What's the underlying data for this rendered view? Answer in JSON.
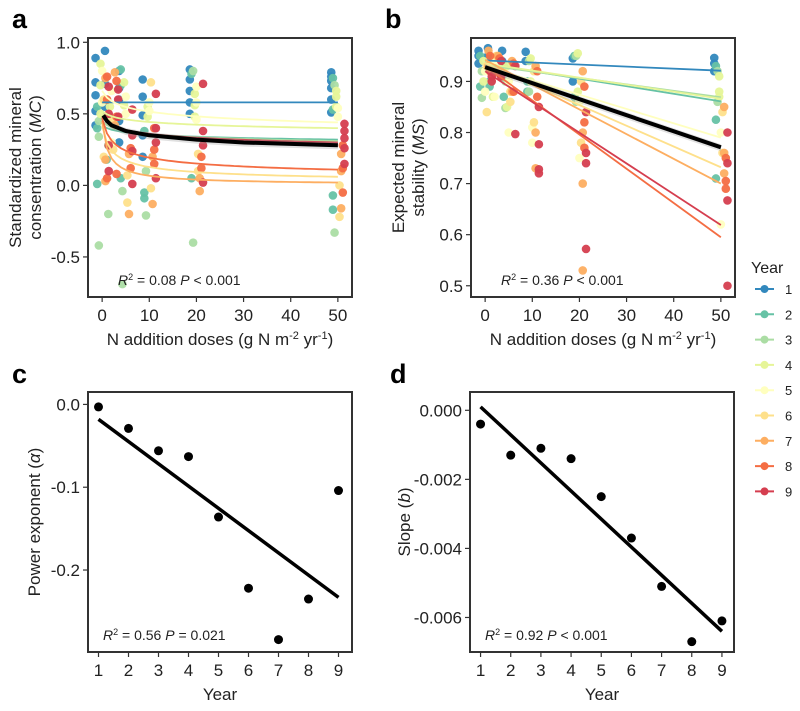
{
  "figure": {
    "panels": [
      "a",
      "b",
      "c",
      "d"
    ],
    "legend": {
      "title": "Year",
      "entries": [
        {
          "label": "1",
          "color": "#3288bd"
        },
        {
          "label": "2",
          "color": "#66c2a5"
        },
        {
          "label": "3",
          "color": "#abdda4"
        },
        {
          "label": "4",
          "color": "#e6f598"
        },
        {
          "label": "5",
          "color": "#ffffbf"
        },
        {
          "label": "6",
          "color": "#fee08b"
        },
        {
          "label": "7",
          "color": "#fdae61"
        },
        {
          "label": "8",
          "color": "#f46d43"
        },
        {
          "label": "9",
          "color": "#d53e4f"
        }
      ]
    }
  },
  "chart_data": [
    {
      "panel": "a",
      "type": "scatter",
      "title": "",
      "xlabel": "N addition doses (g N m⁻² yr⁻¹)",
      "ylabel_line1": "Standardized mineral",
      "ylabel_line2": "consentration (MC)",
      "xlim": [
        -3,
        53
      ],
      "ylim": [
        -0.78,
        1.03
      ],
      "xticks": [
        0,
        10,
        20,
        30,
        40,
        50
      ],
      "xtick_labels": [
        "0",
        "10",
        "20",
        "30",
        "40",
        "50"
      ],
      "yticks": [
        1.0,
        0.5,
        0.0,
        -0.5
      ],
      "ytick_labels": [
        "1.0",
        "0.5",
        "0.0",
        "-0.5"
      ],
      "annotation": "R² = 0.08 P < 0.001",
      "model": "power",
      "overall_fit": {
        "color": "#000000",
        "x": [
          0.25,
          1,
          2,
          5,
          10,
          20,
          30,
          40,
          50
        ],
        "y": [
          0.49,
          0.45,
          0.42,
          0.38,
          0.35,
          0.32,
          0.3,
          0.29,
          0.28
        ]
      },
      "series": [
        {
          "name": "1",
          "fit_y0": 0.58,
          "fit_y50": 0.58,
          "points": {
            "0": [
              0.89,
              0.72,
              0.63,
              0.52,
              0.42
            ],
            "2": [
              0.94,
              0.71,
              0.55
            ],
            "5": [
              0.8,
              0.68,
              0.6,
              0.45,
              0.3
            ],
            "10": [
              0.74,
              0.62,
              0.49,
              0.35,
              0.2
            ],
            "20": [
              0.81,
              0.74,
              0.66,
              0.58,
              0.5
            ],
            "50": [
              0.79,
              0.76,
              0.73,
              0.68,
              0.6,
              0.51
            ]
          }
        },
        {
          "name": "2",
          "fit_y0": 0.42,
          "fit_y50": 0.32,
          "points": {
            "0": [
              0.55,
              0.4,
              0.01
            ],
            "2": [
              0.6,
              0.18
            ],
            "5": [
              0.81,
              0.7,
              0.05
            ],
            "10": [
              0.38,
              -0.09,
              -0.05
            ],
            "20": [
              0.78,
              0.05
            ],
            "50": [
              0.75,
              0.53,
              -0.07,
              -0.17
            ]
          }
        },
        {
          "name": "3",
          "fit_y0": 0.45,
          "fit_y50": 0.31,
          "points": {
            "0": [
              0.45,
              0.34,
              -0.42
            ],
            "2": [
              0.28,
              -0.2
            ],
            "5": [
              -0.04,
              -0.69
            ],
            "10": [
              -0.21,
              0.1
            ],
            "20": [
              0.8,
              -0.4
            ],
            "50": [
              0.7,
              -0.33
            ]
          }
        },
        {
          "name": "4",
          "fit_y0": 0.52,
          "fit_y50": 0.4,
          "points": {
            "0": [
              0.85,
              0.7,
              0.5
            ],
            "2": [
              0.55,
              0.48
            ],
            "5": [
              0.72,
              0.56
            ],
            "10": [
              0.55,
              0.48
            ],
            "20": [
              0.64,
              0.56,
              0.48
            ],
            "50": [
              0.66,
              0.62,
              0.55
            ]
          }
        },
        {
          "name": "5",
          "fit_y0": 0.66,
          "fit_y50": 0.44,
          "points": {
            "0": [
              0.8,
              0.58
            ],
            "2": [
              0.66,
              0.3
            ],
            "5": [
              0.62,
              0.5
            ],
            "10": [
              0.58,
              0.52
            ],
            "20": [
              0.69,
              0.58,
              0.46
            ],
            "50": [
              0.54,
              0.48
            ]
          }
        },
        {
          "name": "6",
          "fit_y0": 0.42,
          "fit_y50": 0.06,
          "points": {
            "0": [
              0.6,
              0.2
            ],
            "2": [
              0.45,
              0.25
            ],
            "5": [
              -0.12,
              0.07
            ],
            "10": [
              0.72,
              -0.02
            ],
            "20": [
              0.22,
              0.1
            ],
            "50": [
              -0.22,
              0.0
            ]
          }
        },
        {
          "name": "7",
          "fit_y0": 0.45,
          "fit_y50": 0.02,
          "points": {
            "0": [
              0.75,
              0.18,
              0.03
            ],
            "2": [
              0.79,
              0.42
            ],
            "5": [
              0.22,
              -0.2
            ],
            "10": [
              0.2,
              -0.13
            ],
            "20": [
              0.05,
              -0.04
            ],
            "50": [
              -0.16,
              0.1,
              0.22
            ]
          }
        },
        {
          "name": "8",
          "fit_y0": 0.47,
          "fit_y50": 0.11,
          "points": {
            "0": [
              0.76,
              0.6,
              0.05
            ],
            "2": [
              0.73,
              0.48,
              0.08
            ],
            "5": [
              0.26,
              0.12
            ],
            "10": [
              0.4,
              0.25,
              0.15
            ],
            "20": [
              0.2,
              0.12
            ],
            "50": [
              0.28,
              -0.05,
              0.12
            ]
          }
        },
        {
          "name": "9",
          "fit_y0": 0.48,
          "fit_y50": 0.3,
          "points": {
            "0": [
              0.69,
              0.5,
              0.28,
              0.1
            ],
            "2": [
              0.67,
              0.6,
              0.48
            ],
            "5": [
              0.53,
              0.35,
              0.24,
              0.01
            ],
            "10": [
              0.64,
              0.4,
              0.3,
              0.05
            ],
            "20": [
              0.71,
              0.38,
              0.28,
              0.02
            ],
            "50": [
              0.43,
              0.38,
              0.33,
              0.26,
              0.15
            ]
          }
        }
      ]
    },
    {
      "panel": "b",
      "type": "scatter",
      "title": "",
      "xlabel": "N addition doses (g N m⁻² yr⁻¹)",
      "ylabel_line1": "Expected mineral",
      "ylabel_line2": "stability (MS)",
      "xlim": [
        -3,
        53
      ],
      "ylim": [
        0.478,
        0.985
      ],
      "xticks": [
        0,
        10,
        20,
        30,
        40,
        50
      ],
      "xtick_labels": [
        "0",
        "10",
        "20",
        "30",
        "40",
        "50"
      ],
      "yticks": [
        0.9,
        0.8,
        0.7,
        0.6,
        0.5
      ],
      "ytick_labels": [
        "0.9",
        "0.8",
        "0.7",
        "0.6",
        "0.5"
      ],
      "annotation": "R² = 0.36 P < 0.001",
      "model": "linear",
      "overall_fit": {
        "color": "#000000",
        "x": [
          0,
          50
        ],
        "y": [
          0.928,
          0.771
        ]
      },
      "series": [
        {
          "name": "1",
          "fit_y0": 0.941,
          "fit_y50": 0.921,
          "points": {
            "0": [
              0.96,
              0.95,
              0.935
            ],
            "2": [
              0.965,
              0.95
            ],
            "5": [
              0.96,
              0.94
            ],
            "10": [
              0.958,
              0.94
            ],
            "20": [
              0.945,
              0.9
            ],
            "50": [
              0.946,
              0.935,
              0.92
            ]
          }
        },
        {
          "name": "2",
          "fit_y0": 0.935,
          "fit_y50": 0.861,
          "points": {
            "0": [
              0.95,
              0.89
            ],
            "2": [
              0.89,
              0.9
            ],
            "5": [
              0.87,
              0.93
            ],
            "10": [
              0.9,
              0.88
            ],
            "20": [
              0.95,
              0.87
            ],
            "50": [
              0.93,
              0.825,
              0.71
            ]
          }
        },
        {
          "name": "3",
          "fit_y0": 0.932,
          "fit_y50": 0.869,
          "points": {
            "0": [
              0.868,
              0.92
            ],
            "2": [
              0.9,
              0.935
            ],
            "5": [
              0.848,
              0.9
            ],
            "10": [
              0.94,
              0.88
            ],
            "20": [
              0.95,
              0.86
            ],
            "50": [
              0.92,
              0.86
            ]
          }
        },
        {
          "name": "4",
          "fit_y0": 0.935,
          "fit_y50": 0.866,
          "points": {
            "0": [
              0.9,
              0.94
            ],
            "2": [
              0.93,
              0.87
            ],
            "5": [
              0.85,
              0.93
            ],
            "10": [
              0.945,
              0.9
            ],
            "20": [
              0.955,
              0.88
            ],
            "50": [
              0.91,
              0.88,
              0.87
            ]
          }
        },
        {
          "name": "5",
          "fit_y0": 0.93,
          "fit_y50": 0.79,
          "points": {
            "0": [
              0.92,
              0.88
            ],
            "2": [
              0.87,
              0.94
            ],
            "5": [
              0.8,
              0.9
            ],
            "10": [
              0.81,
              0.78
            ],
            "20": [
              0.86,
              0.75
            ],
            "50": [
              0.8,
              0.62
            ]
          }
        },
        {
          "name": "6",
          "fit_y0": 0.935,
          "fit_y50": 0.732,
          "points": {
            "0": [
              0.84,
              0.93
            ],
            "2": [
              0.92,
              0.95
            ],
            "5": [
              0.88,
              0.86
            ],
            "10": [
              0.92,
              0.82
            ],
            "20": [
              0.9,
              0.78
            ],
            "50": [
              0.84,
              0.76
            ]
          }
        },
        {
          "name": "7",
          "fit_y0": 0.942,
          "fit_y50": 0.7,
          "points": {
            "0": [
              0.96,
              0.93
            ],
            "2": [
              0.95,
              0.92
            ],
            "5": [
              0.94,
              0.88
            ],
            "10": [
              0.93,
              0.8,
              0.73
            ],
            "20": [
              0.92,
              0.8,
              0.7,
              0.53
            ],
            "50": [
              0.85,
              0.76,
              0.72
            ]
          }
        },
        {
          "name": "8",
          "fit_y0": 0.93,
          "fit_y50": 0.595,
          "points": {
            "0": [
              0.95,
              0.92
            ],
            "2": [
              0.945,
              0.915
            ],
            "5": [
              0.935,
              0.88
            ],
            "10": [
              0.92,
              0.87
            ],
            "20": [
              0.89,
              0.82,
              0.77
            ],
            "50": [
              0.75,
              0.705,
              0.69
            ]
          }
        },
        {
          "name": "9",
          "fit_y0": 0.92,
          "fit_y50": 0.619,
          "points": {
            "0": [
              0.91,
              0.9
            ],
            "2": [
              0.94,
              0.91
            ],
            "5": [
              0.93,
              0.797
            ],
            "10": [
              0.85,
              0.777,
              0.728,
              0.72
            ],
            "20": [
              0.84,
              0.76,
              0.74,
              0.572
            ],
            "50": [
              0.8,
              0.74,
              0.667,
              0.5
            ]
          }
        }
      ]
    },
    {
      "panel": "c",
      "type": "scatter",
      "title": "",
      "xlabel": "Year",
      "ylabel": "Power exponent (α)",
      "xlim": [
        0.65,
        9.45
      ],
      "ylim": [
        -0.299,
        0.015
      ],
      "xticks": [
        1,
        2,
        3,
        4,
        5,
        6,
        7,
        8,
        9
      ],
      "xtick_labels": [
        "1",
        "2",
        "3",
        "4",
        "5",
        "6",
        "7",
        "8",
        "9"
      ],
      "yticks": [
        0.0,
        -0.1,
        -0.2
      ],
      "ytick_labels": [
        "0.0",
        "-0.1",
        "-0.2"
      ],
      "annotation": "R² = 0.56 P = 0.021",
      "x": [
        1,
        2,
        3,
        4,
        5,
        6,
        7,
        8,
        9
      ],
      "y": [
        -0.003,
        -0.029,
        -0.056,
        -0.063,
        -0.136,
        -0.222,
        -0.284,
        -0.235,
        -0.104
      ],
      "fit": {
        "x": [
          1,
          9
        ],
        "y": [
          -0.018,
          -0.233
        ]
      }
    },
    {
      "panel": "d",
      "type": "scatter",
      "title": "",
      "xlabel": "Year",
      "ylabel": "Slope (b)",
      "xlim": [
        0.65,
        9.4
      ],
      "ylim": [
        -0.007,
        0.00053
      ],
      "xticks": [
        1,
        2,
        3,
        4,
        5,
        6,
        7,
        8,
        9
      ],
      "xtick_labels": [
        "1",
        "2",
        "3",
        "4",
        "5",
        "6",
        "7",
        "8",
        "9"
      ],
      "yticks": [
        0.0,
        -0.002,
        -0.004,
        -0.006
      ],
      "ytick_labels": [
        "0.000",
        "-0.002",
        "-0.004",
        "-0.006"
      ],
      "annotation": "R² = 0.92 P < 0.001",
      "x": [
        1,
        2,
        3,
        4,
        5,
        6,
        7,
        8,
        9
      ],
      "y": [
        -0.0004,
        -0.0013,
        -0.0011,
        -0.0014,
        -0.0025,
        -0.0037,
        -0.0051,
        -0.0067,
        -0.0061
      ],
      "fit": {
        "x": [
          1,
          9
        ],
        "y": [
          0.0001,
          -0.0064
        ]
      }
    }
  ]
}
